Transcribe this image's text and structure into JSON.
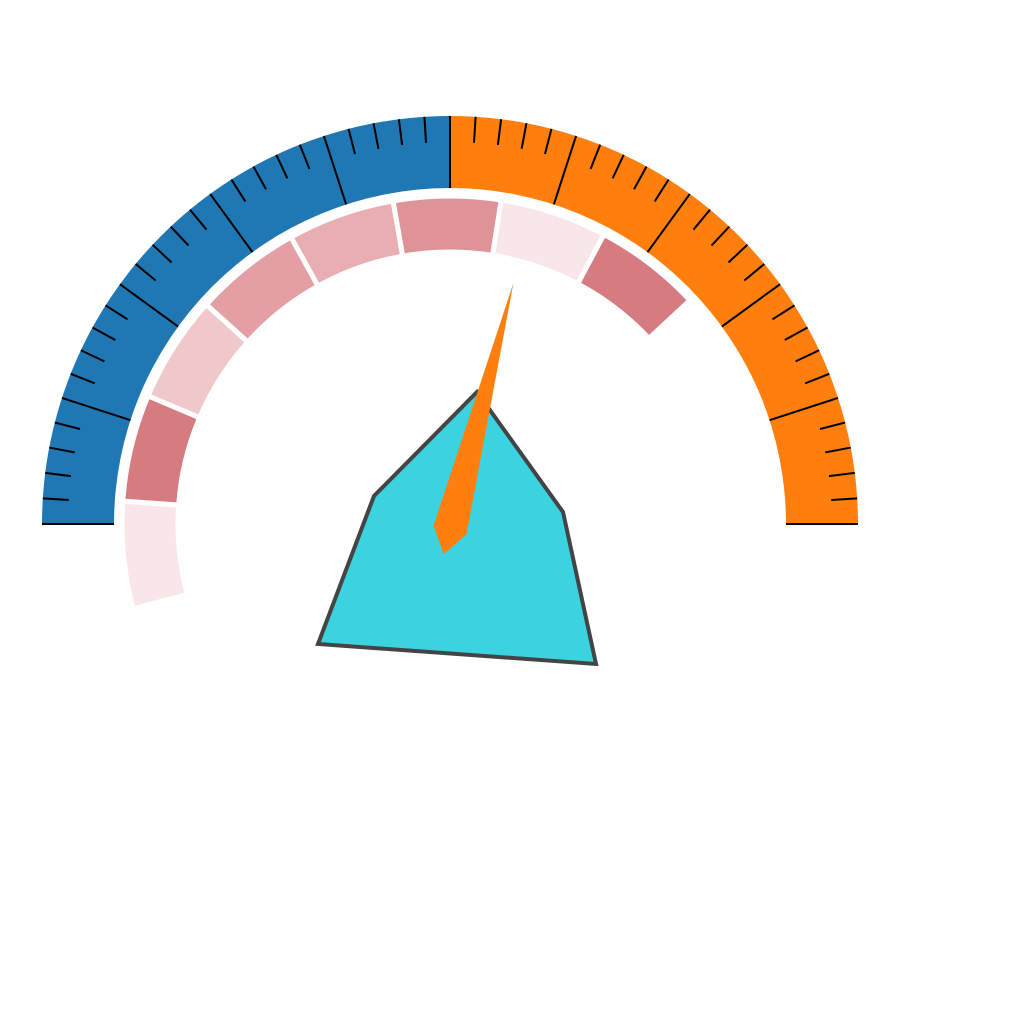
{
  "chart_data": {
    "type": "gauge",
    "title": "",
    "value": 0.58,
    "range": [
      0,
      1
    ],
    "bands": [
      {
        "range": [
          0,
          0.5
        ],
        "color": "#1f77b4"
      },
      {
        "range": [
          0.5,
          1
        ],
        "color": "#ff7f0e"
      }
    ],
    "major_ticks": 11,
    "minor_ticks_per_major": 4,
    "inner_ring": {
      "segments": [
        {
          "range": [
            0.0,
            0.1
          ],
          "color": "#f8e6e8"
        },
        {
          "range": [
            0.1,
            0.2
          ],
          "color": "#d67b80"
        },
        {
          "range": [
            0.2,
            0.3
          ],
          "color": "#f0c8ca"
        },
        {
          "range": [
            0.3,
            0.4
          ],
          "color": "#e39fa3"
        },
        {
          "range": [
            0.4,
            0.5
          ],
          "color": "#e8aeb1"
        },
        {
          "range": [
            0.5,
            0.6
          ],
          "color": "#de9397"
        },
        {
          "range": [
            0.6,
            0.7
          ],
          "color": "#f8e6e8"
        },
        {
          "range": [
            0.7,
            0.8
          ],
          "color": "#d67b80"
        }
      ]
    },
    "needle_color": "#ff7f0e",
    "hub": {
      "fill": "#3bd3df",
      "stroke": "#444444"
    }
  }
}
